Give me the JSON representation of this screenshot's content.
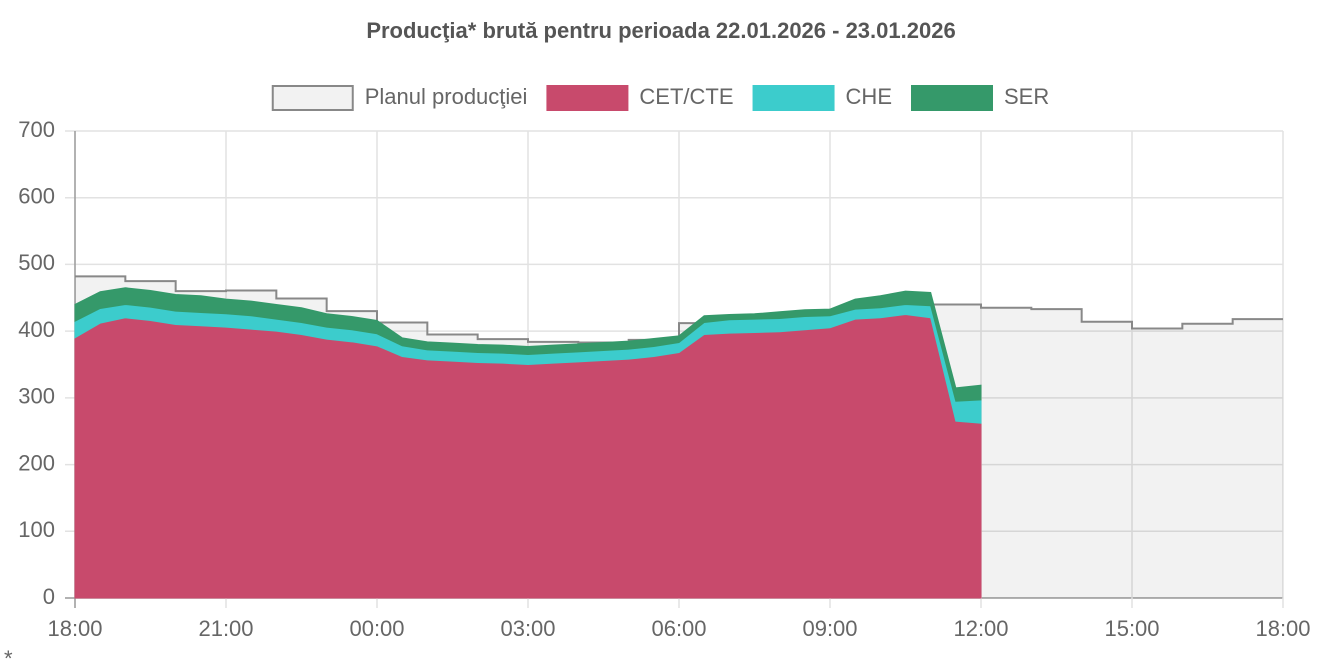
{
  "chart_data": {
    "type": "stacked-area",
    "title": "Producţia* brută pentru perioada 22.01.2026 - 23.01.2026",
    "footnote": "*",
    "xlim": [
      0,
      24
    ],
    "xticks": [
      {
        "value": 0,
        "label": "18:00"
      },
      {
        "value": 3,
        "label": "21:00"
      },
      {
        "value": 6,
        "label": "00:00"
      },
      {
        "value": 9,
        "label": "03:00"
      },
      {
        "value": 12,
        "label": "06:00"
      },
      {
        "value": 15,
        "label": "09:00"
      },
      {
        "value": 18,
        "label": "12:00"
      },
      {
        "value": 21,
        "label": "15:00"
      },
      {
        "value": 24,
        "label": "18:00"
      }
    ],
    "ylim": [
      0,
      700
    ],
    "yticks": [
      0,
      100,
      200,
      300,
      400,
      500,
      600,
      700
    ],
    "grid": true,
    "plan": {
      "name": "Planul producţiei",
      "color": "#888888",
      "fill": "rgba(0,0,0,0.05)",
      "x": [
        0,
        1,
        2,
        3,
        4,
        5,
        6,
        7,
        8,
        9,
        10,
        11,
        12,
        13,
        14,
        15,
        16,
        17,
        18,
        19,
        20,
        21,
        22,
        23
      ],
      "values": [
        482,
        475,
        460,
        461,
        449,
        430,
        413,
        395,
        388,
        384,
        383,
        387,
        412,
        420,
        428,
        432,
        434,
        440,
        435,
        433,
        414,
        404,
        411,
        418
      ]
    },
    "x": [
      0,
      0.5,
      1,
      1.5,
      2,
      2.5,
      3,
      3.5,
      4,
      4.5,
      5,
      5.5,
      6,
      6.5,
      7,
      7.5,
      8,
      8.5,
      9,
      9.5,
      10,
      10.5,
      11,
      11.5,
      12,
      12.5,
      13,
      13.5,
      14,
      14.5,
      15,
      15.5,
      16,
      16.5,
      17,
      17.5,
      18
    ],
    "series": [
      {
        "name": "CET/CTE",
        "color": "#c84a6c",
        "values": [
          390,
          412,
          420,
          416,
          410,
          408,
          406,
          403,
          400,
          395,
          388,
          384,
          378,
          362,
          357,
          355,
          353,
          352,
          350,
          352,
          354,
          356,
          358,
          362,
          368,
          395,
          397,
          398,
          399,
          402,
          405,
          418,
          420,
          425,
          420,
          265,
          262
        ]
      },
      {
        "name": "CHE",
        "color": "#3ccccc",
        "values": [
          25,
          22,
          20,
          20,
          20,
          20,
          20,
          20,
          18,
          18,
          18,
          18,
          18,
          16,
          15,
          15,
          15,
          15,
          15,
          15,
          15,
          15,
          15,
          15,
          15,
          18,
          20,
          20,
          20,
          20,
          18,
          15,
          15,
          15,
          18,
          30,
          35
        ]
      },
      {
        "name": "SER",
        "color": "#35996a",
        "values": [
          25,
          25,
          25,
          25,
          25,
          25,
          22,
          22,
          22,
          22,
          20,
          20,
          20,
          12,
          12,
          12,
          12,
          12,
          12,
          12,
          12,
          12,
          12,
          12,
          10,
          10,
          8,
          8,
          10,
          10,
          10,
          15,
          18,
          20,
          20,
          20,
          22
        ]
      }
    ]
  }
}
